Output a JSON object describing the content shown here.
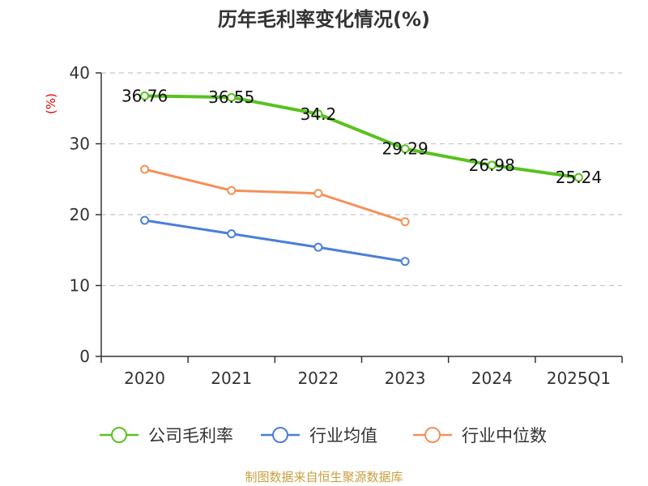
{
  "chart_data": {
    "type": "line",
    "title": "历年毛利率变化情况(%)",
    "xlabel": "",
    "ylabel": "(%)",
    "categories": [
      "2020",
      "2021",
      "2022",
      "2023",
      "2024",
      "2025Q1"
    ],
    "ylim": [
      0,
      40
    ],
    "yticks": [
      0,
      10,
      20,
      30,
      40
    ],
    "grid": true,
    "legend_position": "bottom",
    "series": [
      {
        "name": "公司毛利率",
        "color": "#5ac21f",
        "values": [
          36.76,
          36.55,
          34.2,
          29.29,
          26.98,
          25.24
        ],
        "labels": [
          "36.76",
          "36.55",
          "34.2",
          "29.29",
          "26.98",
          "25.24"
        ]
      },
      {
        "name": "行业均值",
        "color": "#4a7fd8",
        "values": [
          19.2,
          17.3,
          15.4,
          13.4,
          null,
          null
        ]
      },
      {
        "name": "行业中位数",
        "color": "#f39159",
        "values": [
          26.4,
          23.4,
          23.0,
          19.0,
          null,
          null
        ]
      }
    ],
    "source": "制图数据来自恒生聚源数据库"
  }
}
